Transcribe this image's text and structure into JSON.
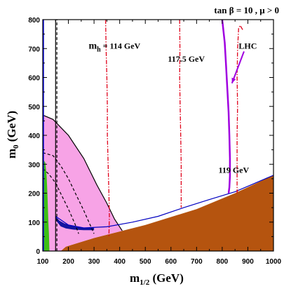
{
  "chart_data": {
    "type": "area",
    "title": "tan β = 10 ,  μ > 0",
    "xlabel": "m",
    "xlabel_sub": "1/2",
    "xlabel_unit": " (GeV)",
    "ylabel": "m",
    "ylabel_sub": "0",
    "ylabel_unit": " (GeV)",
    "xlim": [
      100,
      1000
    ],
    "ylim": [
      0,
      800
    ],
    "xticks": [
      100,
      200,
      300,
      400,
      500,
      600,
      700,
      800,
      900,
      1000
    ],
    "yticks": [
      0,
      100,
      200,
      300,
      400,
      500,
      600,
      700,
      800
    ],
    "grid": false,
    "regions": [
      {
        "name": "charged-lsp",
        "color": "#b5540f",
        "points": [
          [
            170,
            0
          ],
          [
            190,
            15
          ],
          [
            300,
            45
          ],
          [
            500,
            90
          ],
          [
            700,
            145
          ],
          [
            850,
            200
          ],
          [
            1000,
            262
          ],
          [
            1000,
            0
          ]
        ]
      },
      {
        "name": "pink-region",
        "color": "#f7a3e6",
        "points": [
          [
            100,
            470
          ],
          [
            140,
            455
          ],
          [
            200,
            400
          ],
          [
            260,
            320
          ],
          [
            310,
            230
          ],
          [
            350,
            165
          ],
          [
            380,
            110
          ],
          [
            410,
            70
          ],
          [
            300,
            45
          ],
          [
            190,
            15
          ],
          [
            170,
            0
          ],
          [
            100,
            0
          ]
        ]
      },
      {
        "name": "green-region",
        "color": "#3cbf14",
        "points": [
          [
            100,
            320
          ],
          [
            110,
            305
          ],
          [
            115,
            260
          ],
          [
            118,
            200
          ],
          [
            120,
            150
          ],
          [
            122,
            100
          ],
          [
            124,
            60
          ],
          [
            126,
            0
          ],
          [
            100,
            0
          ]
        ]
      },
      {
        "name": "coannihilation-strip",
        "color": "#1414a0",
        "points": [
          [
            150,
            120
          ],
          [
            165,
            105
          ],
          [
            185,
            95
          ],
          [
            220,
            85
          ],
          [
            260,
            80
          ],
          [
            300,
            80
          ],
          [
            300,
            72
          ],
          [
            260,
            72
          ],
          [
            220,
            74
          ],
          [
            190,
            78
          ],
          [
            170,
            85
          ],
          [
            152,
            105
          ]
        ]
      }
    ],
    "lines": [
      {
        "name": "pink-boundary",
        "color": "#000000",
        "style": "solid",
        "points": [
          [
            100,
            470
          ],
          [
            140,
            455
          ],
          [
            200,
            400
          ],
          [
            260,
            320
          ],
          [
            310,
            230
          ],
          [
            350,
            165
          ],
          [
            380,
            110
          ],
          [
            410,
            70
          ]
        ]
      },
      {
        "name": "wmap-strip-upper",
        "color": "#0000c0",
        "style": "solid",
        "points": [
          [
            150,
            120
          ],
          [
            200,
            90
          ],
          [
            260,
            80
          ],
          [
            350,
            84
          ],
          [
            450,
            100
          ],
          [
            550,
            120
          ],
          [
            650,
            150
          ],
          [
            750,
            178
          ],
          [
            850,
            205
          ],
          [
            1000,
            262
          ]
        ]
      },
      {
        "name": "dashed-contour-1",
        "color": "#000000",
        "style": "dashed",
        "points": [
          [
            100,
            340
          ],
          [
            140,
            330
          ],
          [
            170,
            295
          ],
          [
            200,
            250
          ],
          [
            230,
            195
          ],
          [
            260,
            140
          ],
          [
            285,
            90
          ],
          [
            300,
            60
          ]
        ]
      },
      {
        "name": "dashed-contour-2",
        "color": "#000000",
        "style": "dashed",
        "points": [
          [
            100,
            285
          ],
          [
            125,
            265
          ],
          [
            150,
            235
          ],
          [
            175,
            190
          ],
          [
            200,
            145
          ],
          [
            225,
            95
          ],
          [
            240,
            60
          ]
        ]
      },
      {
        "name": "bsg-vertical",
        "color": "#000000",
        "style": "dashed",
        "points": [
          [
            155,
            0
          ],
          [
            155,
            800
          ]
        ]
      },
      {
        "name": "bsg-vertical-2",
        "color": "#000000",
        "style": "solid",
        "points": [
          [
            150,
            0
          ],
          [
            150,
            800
          ]
        ]
      },
      {
        "name": "blue-vertical",
        "color": "#0000ff",
        "style": "solid",
        "points": [
          [
            103,
            0
          ],
          [
            103,
            800
          ]
        ]
      },
      {
        "name": "mh-114",
        "color": "#e0001a",
        "style": "dashdot",
        "points": [
          [
            345,
            800
          ],
          [
            347,
            700
          ],
          [
            350,
            600
          ],
          [
            352,
            500
          ],
          [
            352,
            400
          ],
          [
            355,
            300
          ],
          [
            358,
            200
          ],
          [
            360,
            120
          ],
          [
            358,
            50
          ]
        ]
      },
      {
        "name": "mh-117.5",
        "color": "#e0001a",
        "style": "dashdot",
        "points": [
          [
            634,
            800
          ],
          [
            635,
            700
          ],
          [
            634,
            600
          ],
          [
            636,
            500
          ],
          [
            638,
            400
          ],
          [
            640,
            300
          ],
          [
            640,
            200
          ],
          [
            640,
            150
          ]
        ]
      },
      {
        "name": "mh-119",
        "color": "#e0001a",
        "style": "dashdot",
        "points": [
          [
            880,
            765
          ],
          [
            870,
            780
          ],
          [
            864,
            770
          ],
          [
            860,
            700
          ],
          [
            858,
            600
          ],
          [
            860,
            500
          ],
          [
            858,
            400
          ],
          [
            858,
            300
          ],
          [
            858,
            200
          ],
          [
            862,
            215
          ]
        ]
      },
      {
        "name": "lhc",
        "color": "#a000e0",
        "style": "solid",
        "points": [
          [
            800,
            800
          ],
          [
            810,
            720
          ],
          [
            815,
            640
          ],
          [
            820,
            560
          ],
          [
            825,
            480
          ],
          [
            828,
            400
          ],
          [
            830,
            320
          ],
          [
            830,
            260
          ],
          [
            828,
            220
          ],
          [
            825,
            200
          ]
        ]
      }
    ],
    "annotations": [
      {
        "text": "m",
        "sub": "h",
        "rest": " = 114 GeV",
        "x": 380,
        "y": 700
      },
      {
        "text": "117.5 GeV",
        "x": 660,
        "y": 655
      },
      {
        "text": "LHC",
        "x": 900,
        "y": 700
      },
      {
        "text": "119 GeV",
        "x": 845,
        "y": 270
      }
    ],
    "arrow": {
      "from": [
        885,
        690
      ],
      "to": [
        838,
        580
      ],
      "color": "#a000e0"
    }
  }
}
